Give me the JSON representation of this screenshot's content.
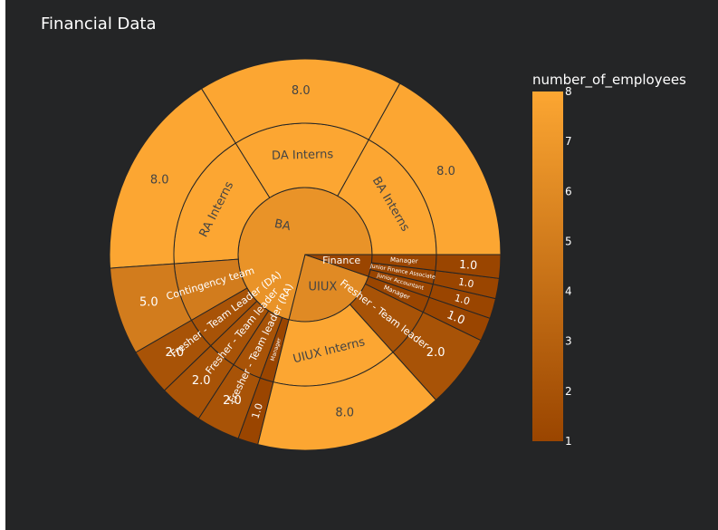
{
  "chart_data": {
    "type": "sunburst",
    "title": "Financial Data",
    "colorbar": {
      "title": "number_of_employees",
      "min": 1,
      "max": 8,
      "ticks": [
        "1",
        "2",
        "3",
        "4",
        "5",
        "6",
        "7",
        "8"
      ]
    },
    "colors": {
      "background": "#242526",
      "low": "#9a4500",
      "high": "#fca632"
    },
    "nodes": [
      {
        "id": "BA",
        "label": "BA",
        "parent": "",
        "value": 6.62
      },
      {
        "id": "UIUX",
        "label": "UIUX",
        "parent": "",
        "value": 6.0
      },
      {
        "id": "Finance",
        "label": "Finance",
        "parent": "",
        "value": 1.0
      },
      {
        "id": "DA Interns",
        "label": "DA Interns",
        "parent": "BA",
        "value": 8.0,
        "value_label": "8.0"
      },
      {
        "id": "BA Interns",
        "label": "BA Interns",
        "parent": "BA",
        "value": 8.0,
        "value_label": "8.0"
      },
      {
        "id": "RA Interns",
        "label": "RA Interns",
        "parent": "BA",
        "value": 8.0,
        "value_label": "8.0"
      },
      {
        "id": "Contingency team",
        "label": "Contingency team",
        "parent": "BA",
        "value": 5.0,
        "value_label": "5.0"
      },
      {
        "id": "Fresher - Team Leader (DA)",
        "label": "Fresher - Team Leader (DA)",
        "parent": "BA",
        "value": 2.0,
        "value_label": "2.0"
      },
      {
        "id": "Fresher - Team leader BA",
        "label": "Fresher - Team leader",
        "parent": "BA",
        "value": 2.0,
        "value_label": "2.0"
      },
      {
        "id": "Fresher - Team leader (RA)",
        "label": "Fresher - Team leader (RA)",
        "parent": "BA",
        "value": 2.0,
        "value_label": "2.0"
      },
      {
        "id": "Manager BA",
        "label": "Manager",
        "parent": "BA",
        "value": 1.0,
        "value_label": "1.0"
      },
      {
        "id": "UIUX Interns",
        "label": "UIUX Interns",
        "parent": "UIUX",
        "value": 8.0,
        "value_label": "8.0"
      },
      {
        "id": "Fresher - Team leader UIUX",
        "label": "Fresher - Team leader",
        "parent": "UIUX",
        "value": 2.0,
        "value_label": "2.0"
      },
      {
        "id": "Manager UIUX",
        "label": "Manager",
        "parent": "UIUX",
        "value": 1.0,
        "value_label": "1.0"
      },
      {
        "id": "Junior Accountant",
        "label": "Junior Accountant",
        "parent": "Finance",
        "value": 1.0,
        "value_label": "1.0"
      },
      {
        "id": "Junior Finance Associate",
        "label": "Junior Finance Associate",
        "parent": "Finance",
        "value": 1.0,
        "value_label": "1.0"
      },
      {
        "id": "Manager Finance",
        "label": "Manager",
        "parent": "Finance",
        "value": 1.0,
        "value_label": "1.0"
      }
    ]
  }
}
